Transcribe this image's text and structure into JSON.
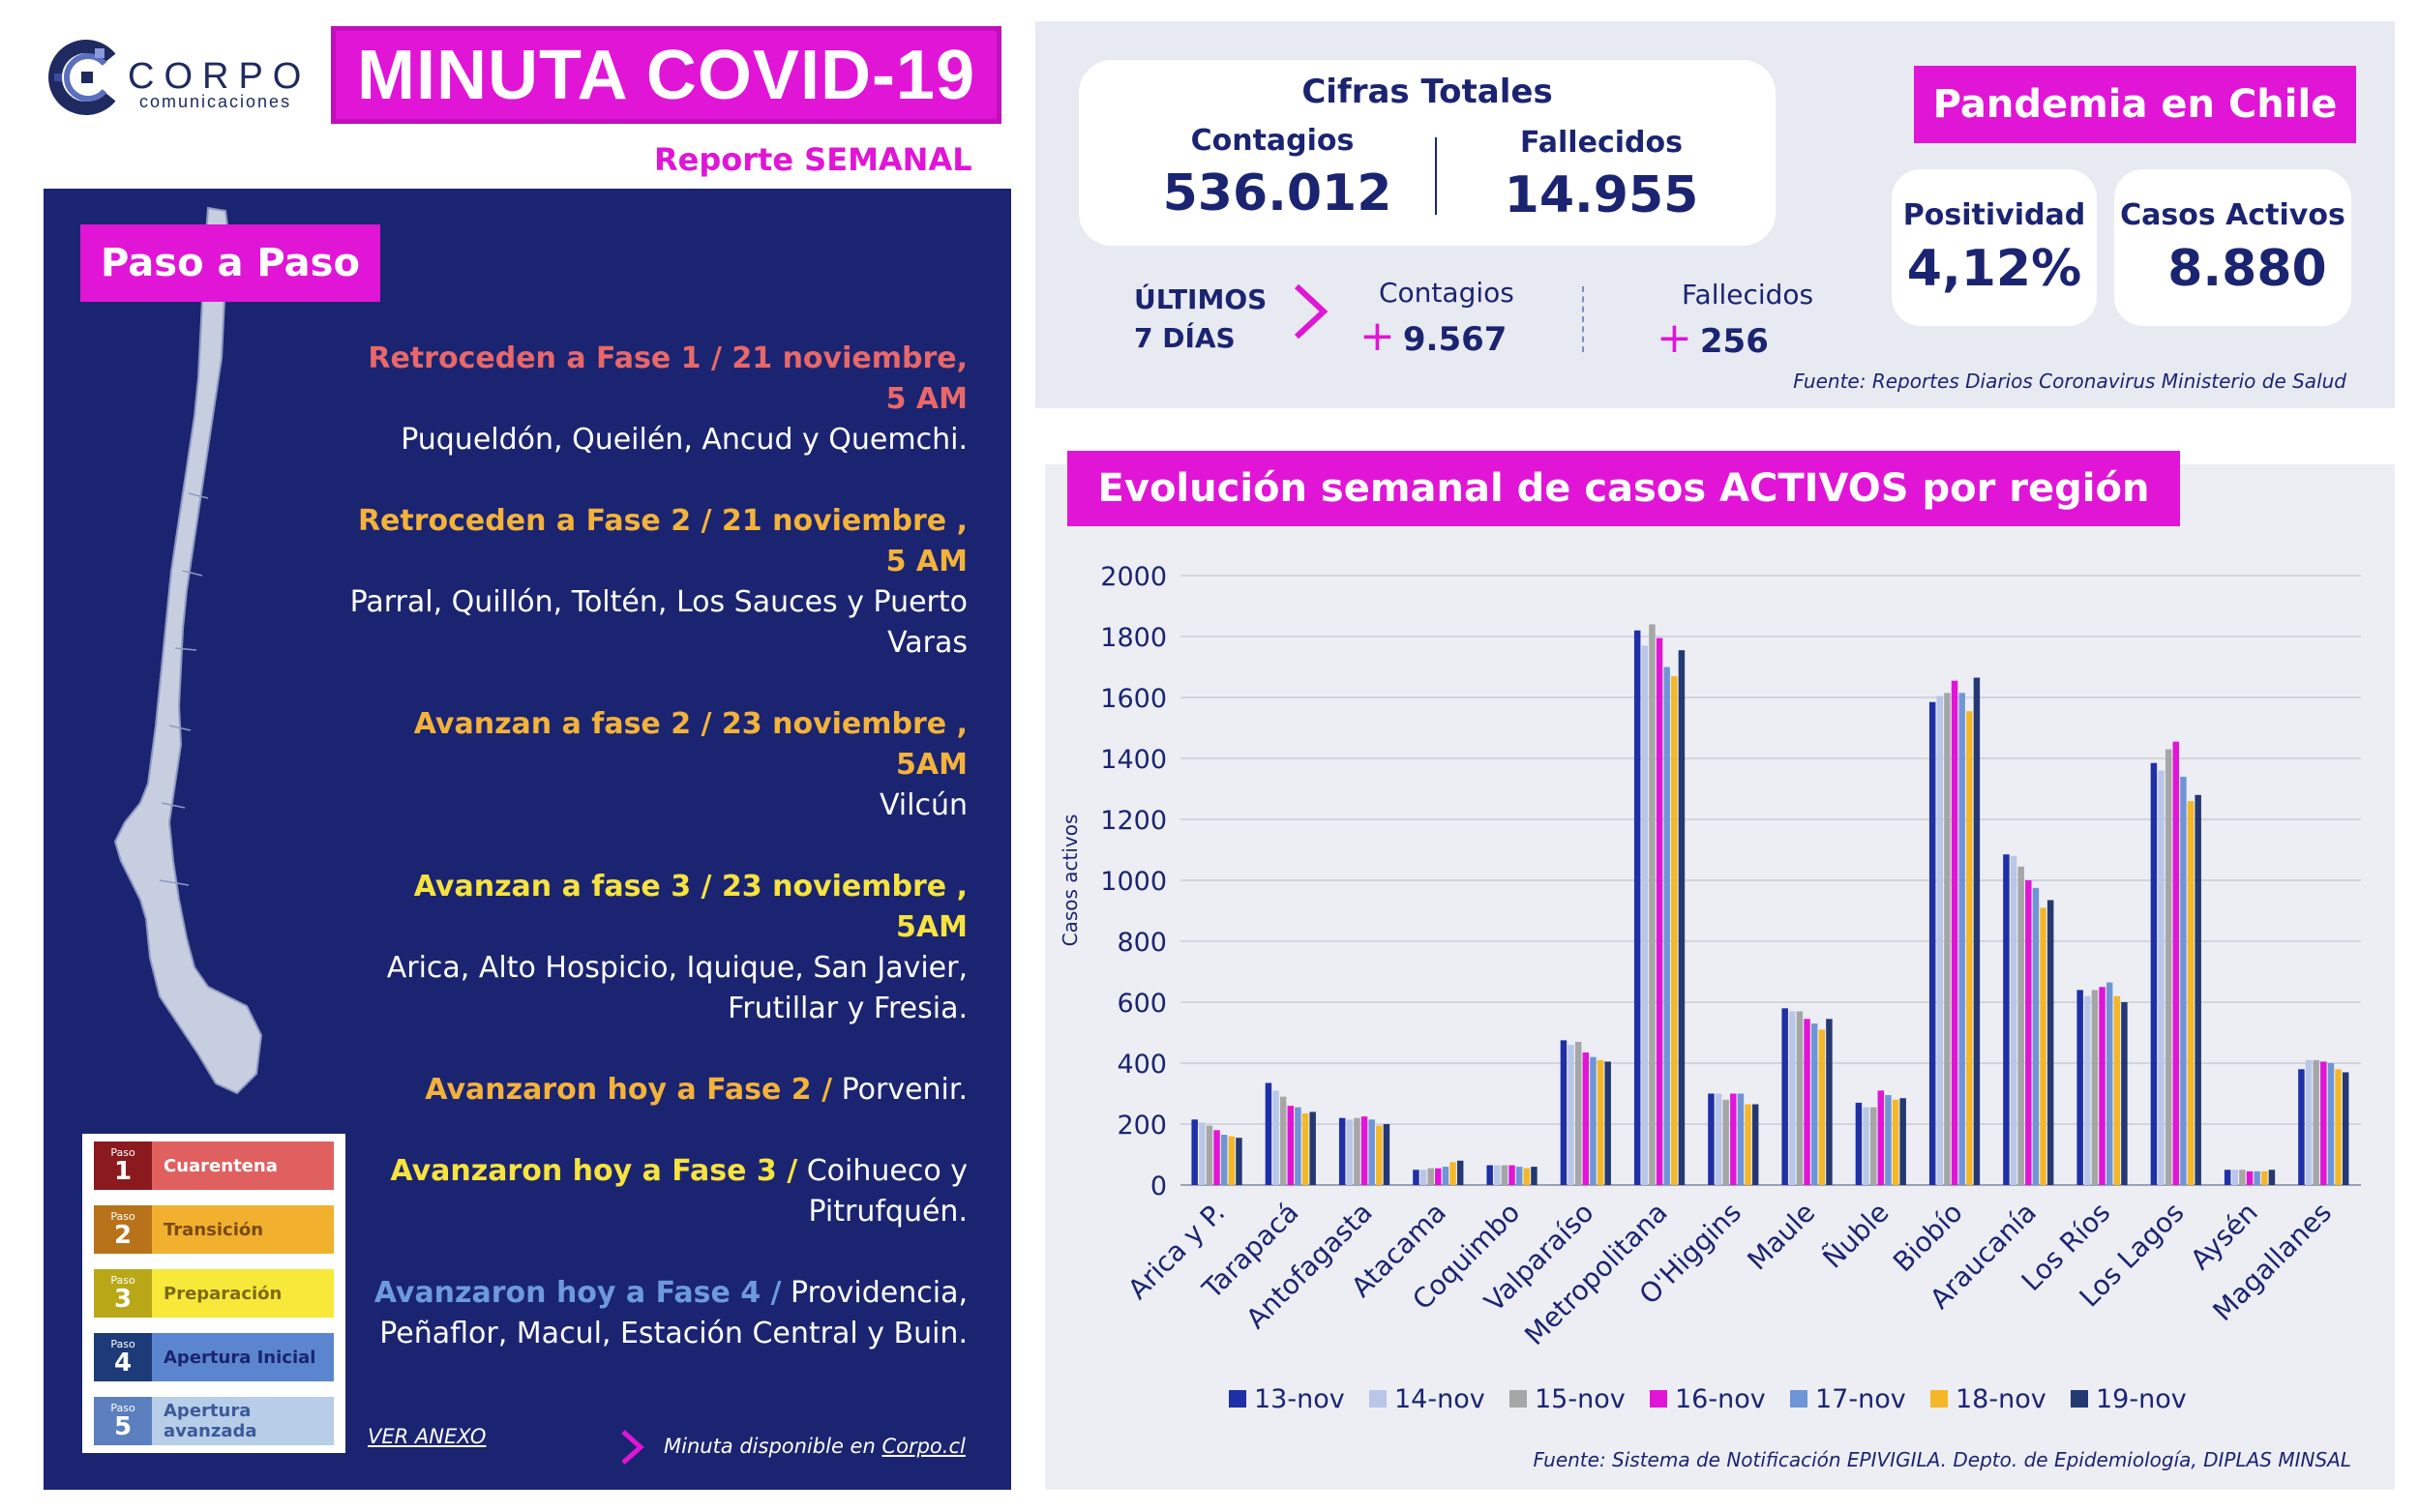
{
  "header": {
    "brand_name": "CORPO",
    "brand_sub": "comunicaciones",
    "title": "MINUTA COVID-19",
    "subtitle": "Reporte SEMANAL"
  },
  "paso_a_paso": {
    "title": "Paso a Paso",
    "steps": [
      {
        "heading": "Retroceden a Fase 1 / 21 noviembre, 5 AM",
        "text": "Puqueldón, Queilén, Ancud y Quemchi.",
        "color": "#e8686a"
      },
      {
        "heading": "Retroceden a Fase 2 / 21 noviembre , 5 AM",
        "text": "Parral, Quillón, Toltén, Los Sauces y Puerto Varas",
        "color": "#f3b23a"
      },
      {
        "heading": "Avanzan a fase  2 / 23 noviembre , 5AM",
        "text": "Vilcún",
        "color": "#f3b23a"
      },
      {
        "heading": "Avanzan a fase  3 / 23 noviembre , 5AM",
        "text": "Arica, Alto Hospicio, Iquique,  San Javier, Frutillar y Fresia.",
        "color": "#f6e33e"
      },
      {
        "heading": "Avanzaron hoy a Fase 2 /",
        "text": " Porvenir.",
        "color": "#f3b23a"
      },
      {
        "heading": "Avanzaron hoy a Fase 3 /",
        "text": " Coihueco y Pitrufquén.",
        "color": "#f6e33e"
      },
      {
        "heading": "Avanzaron hoy a Fase 4 /",
        "text": " Providencia, Peñaflor, Macul, Estación Central y Buin.",
        "color": "#6d9ad8"
      }
    ],
    "legend": [
      {
        "paso": "Paso",
        "num": "1",
        "label": "Cuarentena",
        "dark": "#8b1a1f",
        "light": "#e0605f",
        "text_color": "#ffffff"
      },
      {
        "paso": "Paso",
        "num": "2",
        "label": "Transición",
        "dark": "#b8731a",
        "light": "#f1b02e",
        "text_color": "#7a4b10"
      },
      {
        "paso": "Paso",
        "num": "3",
        "label": "Preparación",
        "dark": "#b9a718",
        "light": "#f8e83a",
        "text_color": "#7a6c10"
      },
      {
        "paso": "Paso",
        "num": "4",
        "label": "Apertura Inicial",
        "dark": "#1d3b78",
        "light": "#5b86cf",
        "text_color": "#1b2471"
      },
      {
        "paso": "Paso",
        "num": "5",
        "label": "Apertura avanzada",
        "dark": "#5b7fbf",
        "light": "#b7cde8",
        "text_color": "#3b5a9a"
      }
    ],
    "ver_anexo": "VER ANEXO",
    "minuta_note_prefix": "Minuta disponible en ",
    "minuta_note_link": "Corpo.cl"
  },
  "cifras": {
    "title": "Cifras Totales",
    "contagios_label": "Contagios",
    "contagios_value": "536.012",
    "fallecidos_label": "Fallecidos",
    "fallecidos_value": "14.955",
    "ultimos_line1": "ÚLTIMOS",
    "ultimos_line2": "7 DÍAS",
    "u_contagios_label": "Contagios",
    "u_contagios_value": "9.567",
    "u_fallecidos_label": "Fallecidos",
    "u_fallecidos_value": "256",
    "plus": "+",
    "fuente": "Fuente: Reportes Diarios Coronavirus Ministerio de Salud"
  },
  "pandemia": {
    "title": "Pandemia en Chile",
    "positividad_label": "Positividad",
    "positividad_value": "4,12%",
    "activos_label": "Casos Activos",
    "activos_value": "8.880"
  },
  "chart_title": "Evolución semanal de casos ACTIVOS por región",
  "chart_fuente": "Fuente: Sistema de Notificación EPIVIGILA. Depto. de Epidemiología, DIPLAS MINSAL",
  "chart_data": {
    "type": "bar",
    "title": "Evolución semanal de casos ACTIVOS por región",
    "xlabel": "",
    "ylabel": "Casos activos",
    "ylim": [
      0,
      2000
    ],
    "yticks": [
      0,
      200,
      400,
      600,
      800,
      1000,
      1200,
      1400,
      1600,
      1800,
      2000
    ],
    "grid": true,
    "legend_position": "bottom",
    "categories": [
      "Arica y P.",
      "Tarapacá",
      "Antofagasta",
      "Atacama",
      "Coquimbo",
      "Valparaíso",
      "Metropolitana",
      "O'Higgins",
      "Maule",
      "Ñuble",
      "Biobío",
      "Araucanía",
      "Los Ríos",
      "Los Lagos",
      "Aysén",
      "Magallanes"
    ],
    "series": [
      {
        "name": "13-nov",
        "color": "#1f2fa6",
        "values": [
          215,
          335,
          220,
          50,
          65,
          475,
          1820,
          300,
          580,
          270,
          1585,
          1085,
          640,
          1385,
          50,
          380
        ]
      },
      {
        "name": "14-nov",
        "color": "#b9c6e8",
        "values": [
          205,
          310,
          215,
          50,
          65,
          460,
          1770,
          300,
          570,
          255,
          1605,
          1080,
          620,
          1360,
          50,
          410
        ]
      },
      {
        "name": "15-nov",
        "color": "#a6a6a6",
        "values": [
          195,
          290,
          220,
          55,
          65,
          470,
          1840,
          280,
          570,
          255,
          1615,
          1045,
          640,
          1430,
          50,
          410
        ]
      },
      {
        "name": "16-nov",
        "color": "#e015d6",
        "values": [
          180,
          260,
          225,
          55,
          65,
          435,
          1795,
          300,
          545,
          310,
          1655,
          1000,
          650,
          1455,
          45,
          405
        ]
      },
      {
        "name": "17-nov",
        "color": "#6f95d6",
        "values": [
          165,
          255,
          215,
          60,
          60,
          420,
          1700,
          300,
          530,
          295,
          1615,
          975,
          665,
          1340,
          45,
          400
        ]
      },
      {
        "name": "18-nov",
        "color": "#f4b728",
        "values": [
          160,
          235,
          195,
          75,
          55,
          410,
          1670,
          265,
          510,
          280,
          1555,
          910,
          620,
          1260,
          45,
          380
        ]
      },
      {
        "name": "19-nov",
        "color": "#243872",
        "values": [
          155,
          240,
          200,
          80,
          60,
          405,
          1755,
          265,
          545,
          285,
          1665,
          935,
          600,
          1280,
          50,
          370
        ]
      }
    ]
  }
}
